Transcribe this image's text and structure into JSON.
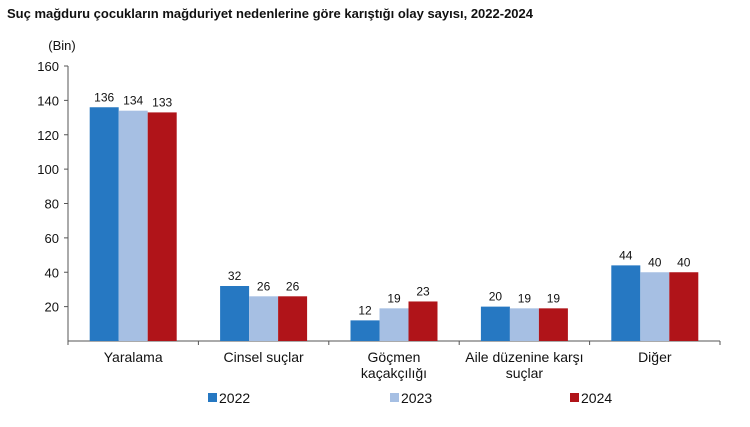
{
  "chart_data": {
    "type": "bar",
    "title": "Suç mağduru çocukların mağduriyet nedenlerine göre karıştığı olay sayısı, 2022-2024",
    "ylabel": "(Bin)",
    "xlabel": "",
    "ylim": [
      0,
      160
    ],
    "yticks": [
      20,
      40,
      60,
      80,
      100,
      120,
      140,
      160
    ],
    "grid": false,
    "legend_position": "bottom",
    "categories": [
      [
        "Yaralama"
      ],
      [
        "Cinsel suçlar"
      ],
      [
        "Göçmen",
        "kaçakçılığı"
      ],
      [
        "Aile düzenine karşı",
        "suçlar"
      ],
      [
        "Diğer"
      ]
    ],
    "series": [
      {
        "name": "2022",
        "color": "#2678c2",
        "values": [
          136,
          32,
          12,
          20,
          44
        ]
      },
      {
        "name": "2023",
        "color": "#a6bfe3",
        "values": [
          134,
          26,
          19,
          19,
          40
        ]
      },
      {
        "name": "2024",
        "color": "#b01419",
        "values": [
          133,
          26,
          23,
          19,
          40
        ]
      }
    ]
  }
}
